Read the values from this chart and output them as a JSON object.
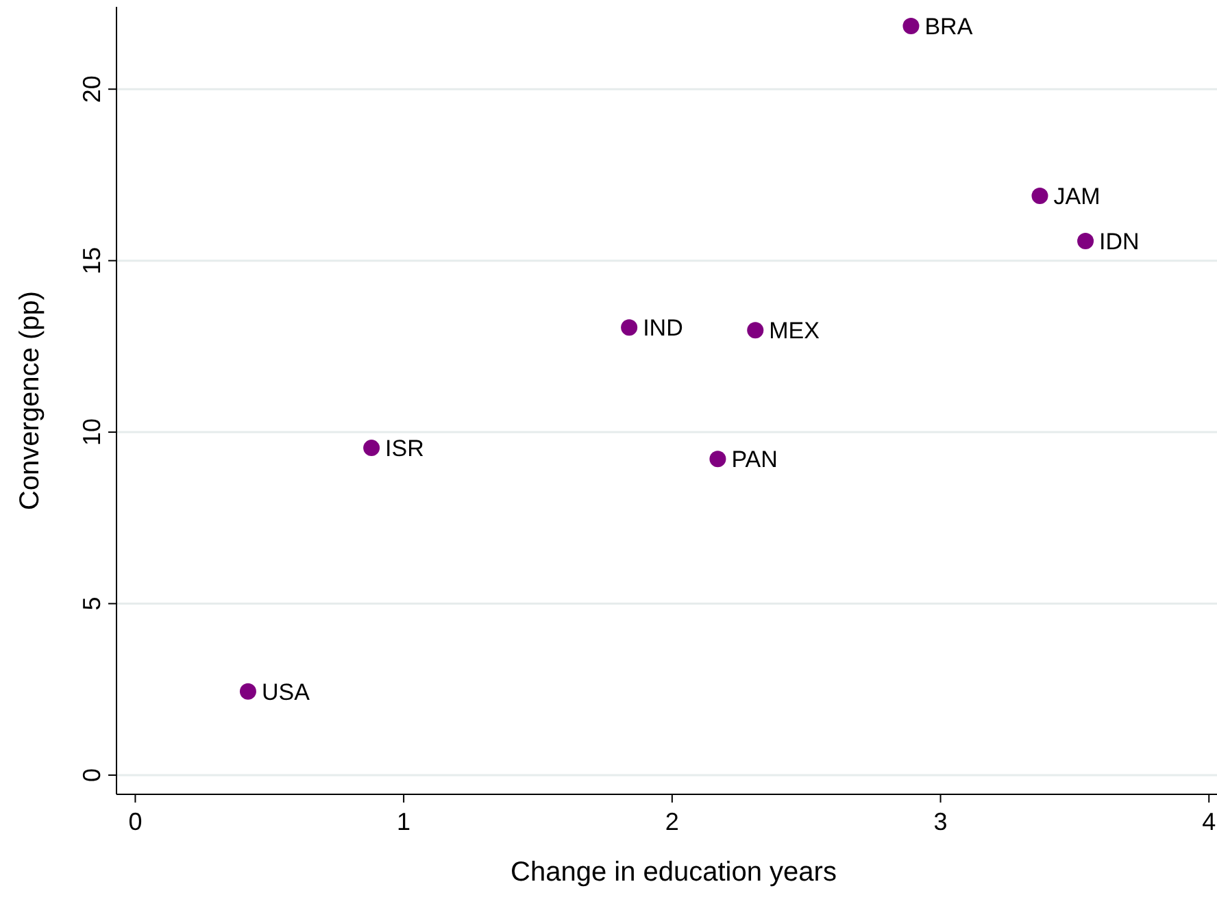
{
  "chart_data": {
    "type": "scatter",
    "xlabel": "Change in education years",
    "ylabel": "Convergence (pp)",
    "x": [
      0.42,
      0.88,
      1.84,
      2.31,
      2.17,
      2.89,
      3.37,
      3.54
    ],
    "series": [
      {
        "color": "#800080",
        "values": [
          2.44,
          9.54,
          13.05,
          12.97,
          9.22,
          21.84,
          16.89,
          15.57
        ]
      }
    ],
    "annotations": [
      {
        "text": "USA",
        "x": 0.42,
        "y": 2.44
      },
      {
        "text": "ISR",
        "x": 0.88,
        "y": 9.54
      },
      {
        "text": "IND",
        "x": 1.84,
        "y": 13.05
      },
      {
        "text": "MEX",
        "x": 2.31,
        "y": 12.97
      },
      {
        "text": "PAN",
        "x": 2.17,
        "y": 9.22
      },
      {
        "text": "BRA",
        "x": 2.89,
        "y": 21.84
      },
      {
        "text": "JAM",
        "x": 3.37,
        "y": 16.89
      },
      {
        "text": "IDN",
        "x": 3.54,
        "y": 15.57
      }
    ],
    "xlim": [
      -0.07,
      4.03
    ],
    "ylim": [
      -0.56,
      22.4
    ],
    "xticks": [
      0,
      1,
      2,
      3,
      4
    ],
    "yticks": [
      0,
      5,
      10,
      15,
      20
    ],
    "grid": "y",
    "marker": "circle"
  }
}
